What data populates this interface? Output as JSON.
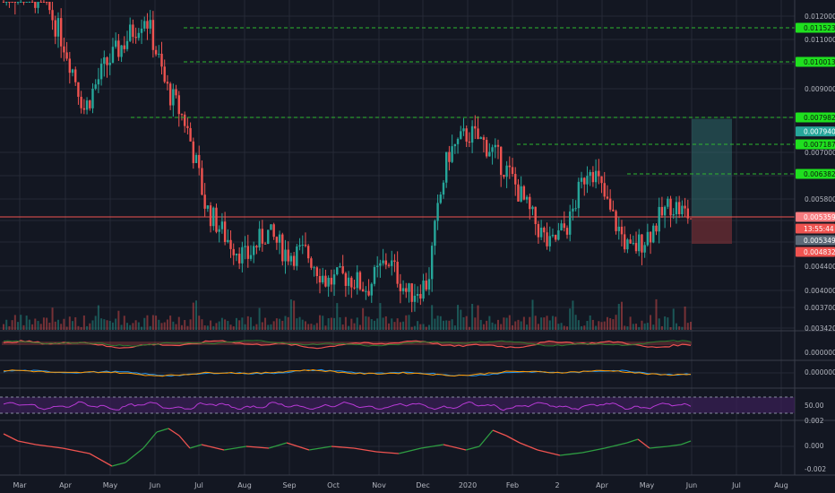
{
  "colors": {
    "background": "#131722",
    "grid": "#262a36",
    "separator": "#3a3e4a",
    "up": "#26a69a",
    "down": "#ef5350",
    "level_line": "#2eb82e",
    "level_tag": "#1fe01f",
    "current_tag": "#f77c80",
    "reward_zone": "#2e6a6a",
    "risk_zone": "#7a2f37",
    "macd_signal": "#ff9800",
    "macd_main": "#2196f3",
    "rsi_line": "#b83ad6",
    "rsi_band": "#3b1f57",
    "osc_line": "#2e7d32"
  },
  "chart_data": {
    "type": "candlestick",
    "price_axis": {
      "ylim": [
        0.00342,
        0.01241
      ],
      "ticks": [
        "0.012000",
        "0.011000",
        "0.009000",
        "0.007000",
        "0.005800",
        "0.004400",
        "0.004000",
        "0.003700",
        "0.003420"
      ]
    },
    "x_axis": {
      "ticks": [
        "Mar",
        "Apr",
        "May",
        "Jun",
        "Jul",
        "Aug",
        "Sep",
        "Oct",
        "Nov",
        "Dec",
        "2020",
        "Feb",
        "2",
        "Apr",
        "May",
        "Jun",
        "Jul",
        "Aug"
      ]
    },
    "horizontal_levels": [
      {
        "label": "0.011523",
        "value": 0.011523
      },
      {
        "label": "0.010013",
        "value": 0.010013
      },
      {
        "label": "0.007982",
        "value": 0.007982
      },
      {
        "label": "0.007187",
        "value": 0.007187
      },
      {
        "label": "0.006382",
        "value": 0.006382
      }
    ],
    "position_tool": {
      "target": {
        "label": "0.007940",
        "value": 0.00794
      },
      "entry": {
        "label": "0.005359",
        "value": 0.005359
      },
      "countdown": "13:55:44",
      "last": {
        "label": "0.005349",
        "value": 0.005349
      },
      "stop": {
        "label": "0.004832",
        "value": 0.004832
      }
    },
    "close_path": [
      [
        "Mar",
        0.0128
      ],
      [
        "Apr",
        0.0128
      ],
      [
        "Apr-mid",
        0.0125
      ],
      [
        "May",
        0.0105
      ],
      [
        "May-mid",
        0.0081
      ],
      [
        "May-late",
        0.0096
      ],
      [
        "Jun",
        0.0106
      ],
      [
        "Jun-mid",
        0.0118
      ],
      [
        "Jul",
        0.0089
      ],
      [
        "Jul-mid",
        0.0077
      ],
      [
        "Aug",
        0.0055
      ],
      [
        "Aug-mid",
        0.0049
      ],
      [
        "Sep",
        0.0045
      ],
      [
        "Sep-mid",
        0.005
      ],
      [
        "Oct",
        0.0046
      ],
      [
        "Oct-mid",
        0.0046
      ],
      [
        "Nov",
        0.0041
      ],
      [
        "Nov-mid",
        0.0042
      ],
      [
        "Dec",
        0.004
      ],
      [
        "Dec-mid",
        0.0045
      ],
      [
        "Dec-late",
        0.0039
      ],
      [
        "2020",
        0.0041
      ],
      [
        "2020-mid",
        0.0068
      ],
      [
        "Feb",
        0.0074
      ],
      [
        "Feb-mid",
        0.007
      ],
      [
        "2",
        0.0063
      ],
      [
        "2-mid",
        0.0054
      ],
      [
        "Apr",
        0.0047
      ],
      [
        "Apr-mid",
        0.0052
      ],
      [
        "Apr-late",
        0.0066
      ],
      [
        "May",
        0.0054
      ],
      [
        "May-mid",
        0.0046
      ],
      [
        "May-late",
        0.005
      ],
      [
        "Jun",
        0.0056
      ],
      [
        "Jun-end",
        0.0053
      ]
    ],
    "indicators": {
      "rsi": {
        "ticks": [
          "50.00"
        ],
        "bands": [
          30,
          70
        ]
      },
      "macd": {
        "ticks": [
          "0.000000"
        ]
      },
      "oscillator": {
        "ticks": [
          "0.002",
          "0.000",
          "-0.002"
        ]
      }
    }
  }
}
